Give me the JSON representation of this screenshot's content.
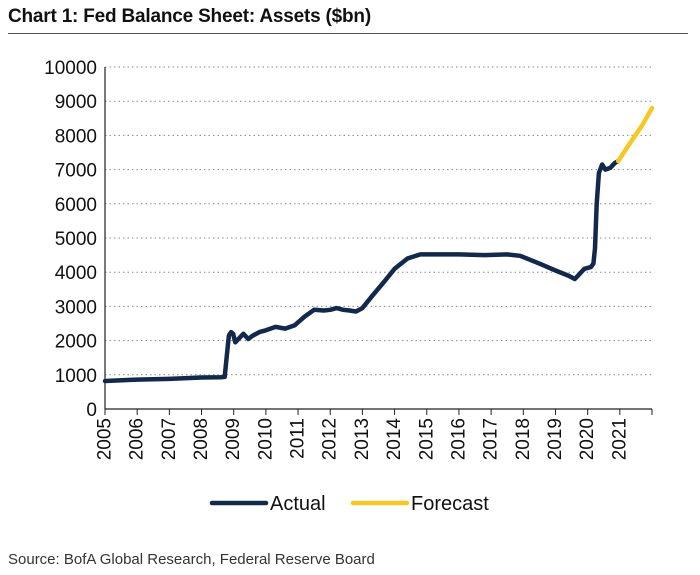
{
  "title": "Chart 1: Fed Balance Sheet: Assets ($bn)",
  "source": "Source: BofA Global Research, Federal Reserve Board",
  "chart_data": {
    "type": "line",
    "title": "Chart 1: Fed Balance Sheet: Assets ($bn)",
    "xlabel": "",
    "ylabel": "",
    "xlim": [
      2005,
      2022
    ],
    "ylim": [
      0,
      10000
    ],
    "yticks": [
      0,
      1000,
      2000,
      3000,
      4000,
      5000,
      6000,
      7000,
      8000,
      9000,
      10000
    ],
    "xticks": [
      2005,
      2006,
      2007,
      2008,
      2009,
      2010,
      2011,
      2012,
      2013,
      2014,
      2015,
      2016,
      2017,
      2018,
      2019,
      2020,
      2021
    ],
    "grid": "horizontal dotted",
    "legend": "bottom-center",
    "series": [
      {
        "name": "Actual",
        "color": "#13294b",
        "x": [
          2005.0,
          2006.0,
          2007.0,
          2008.0,
          2008.6,
          2008.72,
          2008.78,
          2008.85,
          2008.92,
          2008.98,
          2009.05,
          2009.15,
          2009.3,
          2009.45,
          2009.6,
          2009.8,
          2010.0,
          2010.3,
          2010.6,
          2010.9,
          2011.2,
          2011.5,
          2011.8,
          2012.0,
          2012.2,
          2012.4,
          2012.6,
          2012.8,
          2013.0,
          2013.3,
          2013.7,
          2014.0,
          2014.4,
          2014.8,
          2015.2,
          2016.0,
          2016.8,
          2017.5,
          2017.9,
          2018.5,
          2019.0,
          2019.4,
          2019.6,
          2019.75,
          2019.9,
          2020.1,
          2020.18,
          2020.23,
          2020.28,
          2020.35,
          2020.45,
          2020.55,
          2020.7,
          2020.85,
          2020.95
        ],
        "values": [
          820,
          860,
          880,
          920,
          930,
          940,
          1500,
          2150,
          2250,
          2200,
          1950,
          2050,
          2200,
          2050,
          2150,
          2250,
          2300,
          2400,
          2350,
          2450,
          2700,
          2900,
          2880,
          2900,
          2950,
          2900,
          2880,
          2850,
          2950,
          3300,
          3750,
          4100,
          4400,
          4520,
          4520,
          4520,
          4500,
          4520,
          4480,
          4250,
          4050,
          3900,
          3800,
          3950,
          4100,
          4150,
          4250,
          4700,
          6000,
          6900,
          7150,
          7000,
          7050,
          7200,
          7250
        ]
      },
      {
        "name": "Forecast",
        "color": "#f5c825",
        "x": [
          2020.95,
          2021.3,
          2021.7,
          2022.0
        ],
        "values": [
          7250,
          7750,
          8300,
          8800
        ]
      }
    ]
  }
}
